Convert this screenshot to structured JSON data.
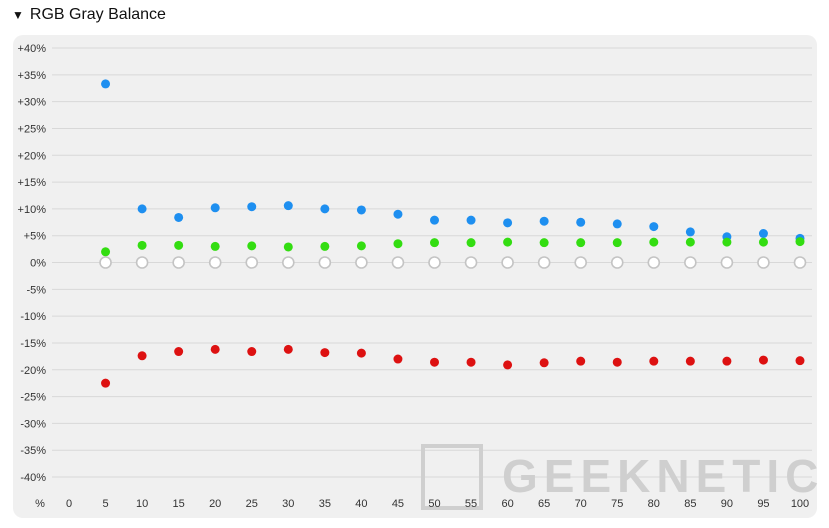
{
  "header": {
    "toggle_icon": "triangle-down-icon",
    "title": "RGB Gray Balance"
  },
  "watermark": "GEEKNETIC",
  "chart_data": {
    "type": "scatter",
    "x_axis_label": "%",
    "x": [
      0,
      5,
      10,
      15,
      20,
      25,
      30,
      35,
      40,
      45,
      50,
      55,
      60,
      65,
      70,
      75,
      80,
      85,
      90,
      95,
      100
    ],
    "y_ticks": [
      "+40%",
      "+35%",
      "+30%",
      "+25%",
      "+20%",
      "+15%",
      "+10%",
      "+5%",
      "0%",
      "-5%",
      "-10%",
      "-15%",
      "-20%",
      "-25%",
      "-30%",
      "-35%",
      "-40%"
    ],
    "ylim": [
      -40,
      40
    ],
    "grid": true,
    "series": [
      {
        "color": "#1e8ff0",
        "values": [
          null,
          33.3,
          10.0,
          8.4,
          10.2,
          10.4,
          10.6,
          10.0,
          9.8,
          9.0,
          7.9,
          7.9,
          7.4,
          7.7,
          7.5,
          7.2,
          6.7,
          5.7,
          4.8,
          5.4,
          4.5
        ]
      },
      {
        "color": "#33dd11",
        "values": [
          null,
          2.0,
          3.2,
          3.2,
          3.0,
          3.1,
          2.9,
          3.0,
          3.1,
          3.5,
          3.7,
          3.7,
          3.8,
          3.7,
          3.7,
          3.7,
          3.8,
          3.8,
          3.8,
          3.8,
          3.9
        ]
      },
      {
        "color": "#dd1111",
        "values": [
          null,
          -22.5,
          -17.4,
          -16.6,
          -16.2,
          -16.6,
          -16.2,
          -16.8,
          -16.9,
          -18.0,
          -18.6,
          -18.6,
          -19.1,
          -18.7,
          -18.4,
          -18.6,
          -18.4,
          -18.4,
          -18.4,
          -18.2,
          -18.3
        ]
      },
      {
        "color": "#ffffff",
        "stroke": "#c4c4c4",
        "hollow": true,
        "values": [
          null,
          0,
          0,
          0,
          0,
          0,
          0,
          0,
          0,
          0,
          0,
          0,
          0,
          0,
          0,
          0,
          0,
          0,
          0,
          0,
          0
        ]
      }
    ]
  }
}
